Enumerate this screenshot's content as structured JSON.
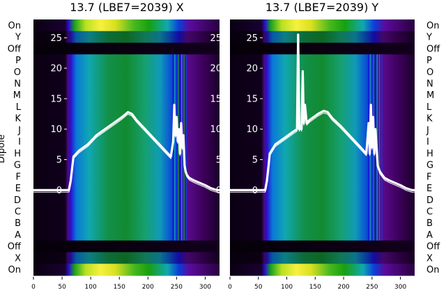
{
  "chart_data": [
    {
      "type": "heatmap",
      "title": "13.7 (LBE7=2039) X",
      "ylabel": "Dipole",
      "xlim": [
        0,
        325
      ],
      "x_ticks": [
        "0",
        "50",
        "100",
        "150",
        "200",
        "250",
        "300"
      ],
      "row_labels": [
        "On",
        "Y",
        "Off",
        "P",
        "O",
        "N",
        "M",
        "L",
        "K",
        "J",
        "I",
        "H",
        "G",
        "F",
        "E",
        "D",
        "C",
        "B",
        "A",
        "Off",
        "X",
        "On"
      ],
      "overlay_ylim": [
        -14,
        28
      ],
      "overlay_ticks": [
        "0",
        "5",
        "10",
        "15",
        "20",
        "25"
      ],
      "overlay_line": {
        "x": [
          0,
          62,
          65,
          68,
          70,
          80,
          95,
          110,
          125,
          140,
          155,
          165,
          172,
          180,
          195,
          210,
          225,
          235,
          240,
          244,
          246,
          248,
          250,
          252,
          254,
          256,
          258,
          260,
          262,
          264,
          266,
          268,
          272,
          280,
          290,
          300,
          310,
          320,
          325
        ],
        "y": [
          0,
          0,
          1.5,
          4,
          5.5,
          6.5,
          7.5,
          9,
          10,
          11,
          12,
          12.8,
          12.5,
          11.5,
          10,
          8.5,
          7,
          6,
          5.5,
          8,
          14,
          9,
          12,
          8,
          10,
          6,
          11,
          7,
          9,
          4,
          3,
          2.5,
          2,
          1.6,
          1.2,
          0.8,
          0.3,
          0,
          0
        ]
      }
    },
    {
      "type": "heatmap",
      "title": "13.7 (LBE7=2039) Y",
      "xlim": [
        0,
        325
      ],
      "x_ticks": [
        "0",
        "50",
        "100",
        "150",
        "200",
        "250",
        "300"
      ],
      "row_labels": [
        "On",
        "Y",
        "Off",
        "P",
        "O",
        "N",
        "M",
        "L",
        "K",
        "J",
        "I",
        "H",
        "G",
        "F",
        "E",
        "D",
        "C",
        "B",
        "A",
        "Off",
        "X",
        "On"
      ],
      "overlay_ylim": [
        -14,
        28
      ],
      "overlay_ticks": [
        "0",
        "5",
        "10",
        "15",
        "20",
        "25"
      ],
      "overlay_line": {
        "x": [
          0,
          62,
          65,
          68,
          70,
          80,
          95,
          110,
          118,
          120,
          122,
          124,
          126,
          128,
          130,
          132,
          135,
          140,
          155,
          165,
          172,
          180,
          195,
          210,
          225,
          235,
          240,
          244,
          246,
          248,
          250,
          252,
          254,
          256,
          258,
          260,
          264,
          268,
          272,
          280,
          290,
          300,
          310,
          320,
          325
        ],
        "y": [
          0,
          0,
          1.5,
          4,
          6,
          7.5,
          8.5,
          9.5,
          10,
          25.5,
          10,
          10.5,
          10,
          19.5,
          11,
          14,
          11,
          11.5,
          12.5,
          13,
          12.8,
          11.8,
          10.5,
          9,
          7.5,
          6.5,
          6,
          11,
          6,
          14,
          7,
          12,
          6,
          10,
          7,
          4,
          3,
          2.5,
          2,
          1.6,
          1.2,
          0.8,
          0.3,
          0,
          0
        ]
      }
    }
  ],
  "colors": {
    "overlay_line": "#ffffff",
    "colormap": [
      "#000000",
      "#2a0040",
      "#5a0a8a",
      "#1a10d8",
      "#0a78d8",
      "#10a8b0",
      "#129050",
      "#18a010",
      "#78c820",
      "#d8e020",
      "#fffc40"
    ]
  }
}
